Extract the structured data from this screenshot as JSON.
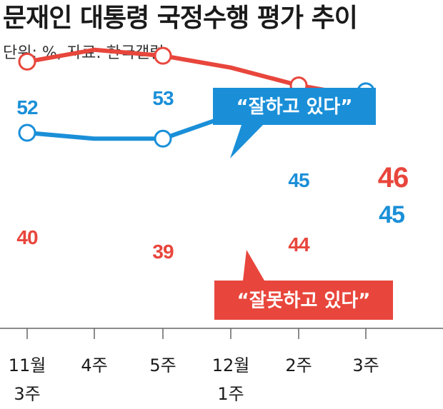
{
  "header": {
    "title": "문재인 대통령 국정수행 평가 추이",
    "subtitle": "단위: %, 자료: 한국갤럽"
  },
  "chart_data": {
    "type": "line",
    "title": "문재인 대통령 국정수행 평가 추이",
    "subtitle": "단위: %, 자료: 한국갤럽",
    "x": [
      [
        "11월",
        "3주"
      ],
      [
        "4주"
      ],
      [
        "5주"
      ],
      [
        "12월",
        "1주"
      ],
      [
        "2주"
      ],
      [
        "3주"
      ]
    ],
    "grid": false,
    "series": [
      {
        "name": "“잘하고 있다”",
        "color": "#1a8fd8",
        "values": [
          52,
          53,
          53,
          49,
          45,
          45
        ],
        "labeled_points": [
          0,
          2,
          4,
          5
        ],
        "labels": {
          "0": "52",
          "2": "53",
          "4": "45",
          "5": "45"
        }
      },
      {
        "name": "“잘못하고 있다”",
        "color": "#e8463c",
        "values": [
          40,
          38,
          39,
          41,
          44,
          46
        ],
        "labeled_points": [
          0,
          2,
          4,
          5
        ],
        "labels": {
          "0": "40",
          "2": "39",
          "4": "44",
          "5": "46"
        }
      }
    ]
  }
}
